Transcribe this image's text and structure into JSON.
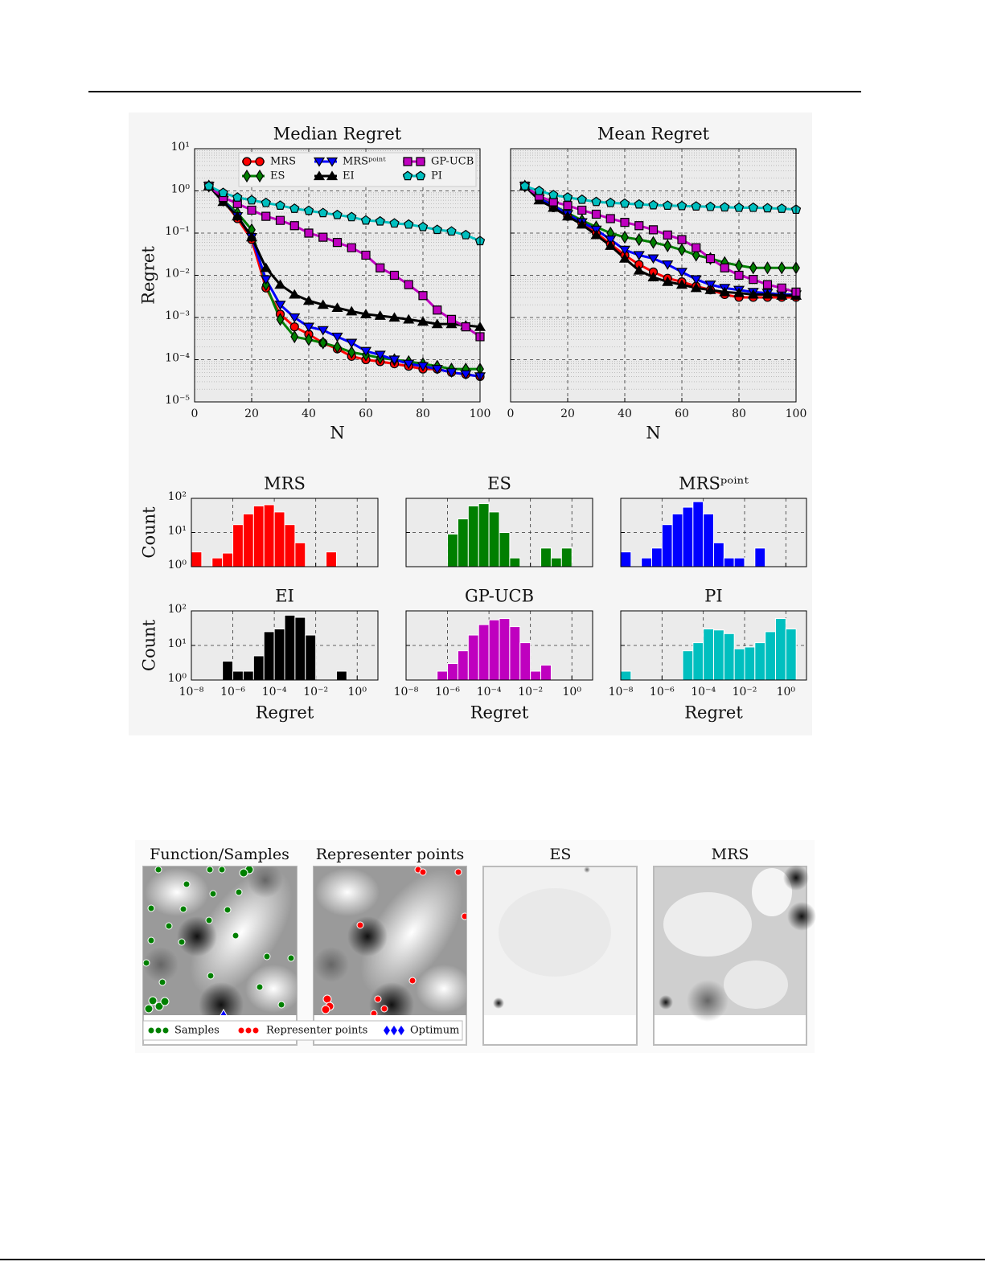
{
  "chart_data": [
    {
      "type": "line",
      "title": "Median Regret",
      "x_label": "N",
      "y_label": "Regret",
      "yscale": "log",
      "grid": true,
      "legend": "upper center",
      "x": [
        5,
        10,
        15,
        20,
        25,
        30,
        35,
        40,
        45,
        50,
        55,
        60,
        65,
        70,
        75,
        80,
        85,
        90,
        95,
        100
      ],
      "xlim": [
        0,
        100
      ],
      "xticks": [
        0,
        20,
        40,
        60,
        80,
        100
      ],
      "ylim": [
        1e-05,
        10
      ],
      "yticks": [
        {
          "value": 1e-05,
          "label": "10⁻⁵"
        },
        {
          "value": 0.0001,
          "label": "10⁻⁴"
        },
        {
          "value": 0.001,
          "label": "10⁻³"
        },
        {
          "value": 0.01,
          "label": "10⁻²"
        },
        {
          "value": 0.1,
          "label": "10⁻¹"
        },
        {
          "value": 1,
          "label": "10⁰"
        },
        {
          "value": 10,
          "label": "10¹"
        }
      ],
      "series": [
        {
          "name": "MRS",
          "color": "#ff0000",
          "marker": "circle",
          "values": [
            1.3,
            0.6,
            0.22,
            0.07,
            0.005,
            0.0012,
            0.0006,
            0.0004,
            0.00025,
            0.00018,
            0.00012,
            0.0001,
            9e-05,
            8e-05,
            7e-05,
            6e-05,
            6e-05,
            5e-05,
            4.5e-05,
            4e-05
          ]
        },
        {
          "name": "ES",
          "color": "#007f00",
          "marker": "diamond",
          "values": [
            1.3,
            0.6,
            0.3,
            0.12,
            0.006,
            0.0009,
            0.00035,
            0.0003,
            0.00025,
            0.0002,
            0.00015,
            0.00013,
            0.00011,
            0.0001,
            9e-05,
            8e-05,
            7e-05,
            6e-05,
            6e-05,
            6e-05
          ]
        },
        {
          "name": "MRSᵖᵒⁱⁿᵗ",
          "color": "#0000ff",
          "marker": "triangle-down",
          "values": [
            1.3,
            0.6,
            0.25,
            0.08,
            0.008,
            0.002,
            0.001,
            0.0006,
            0.0005,
            0.00035,
            0.00025,
            0.00016,
            0.00013,
            0.0001,
            8e-05,
            7e-05,
            6e-05,
            5e-05,
            4.5e-05,
            4e-05
          ]
        },
        {
          "name": "EI",
          "color": "#000000",
          "marker": "triangle-up",
          "values": [
            1.3,
            0.55,
            0.25,
            0.08,
            0.015,
            0.006,
            0.0035,
            0.0025,
            0.002,
            0.0017,
            0.0014,
            0.0012,
            0.0011,
            0.001,
            0.0009,
            0.0008,
            0.0007,
            0.0007,
            0.00065,
            0.0006
          ]
        },
        {
          "name": "GP-UCB",
          "color": "#bf00bf",
          "marker": "square",
          "values": [
            1.3,
            0.7,
            0.5,
            0.35,
            0.25,
            0.2,
            0.15,
            0.1,
            0.08,
            0.06,
            0.045,
            0.03,
            0.015,
            0.01,
            0.006,
            0.0033,
            0.0015,
            0.0009,
            0.0006,
            0.00035
          ]
        },
        {
          "name": "PI",
          "color": "#00bfbf",
          "marker": "pentagon",
          "values": [
            1.3,
            0.9,
            0.7,
            0.6,
            0.52,
            0.45,
            0.38,
            0.34,
            0.3,
            0.27,
            0.24,
            0.2,
            0.19,
            0.17,
            0.16,
            0.14,
            0.12,
            0.11,
            0.09,
            0.065
          ]
        }
      ]
    },
    {
      "type": "line",
      "title": "Mean Regret",
      "x_label": "N",
      "yscale": "log",
      "grid": true,
      "x": [
        5,
        10,
        15,
        20,
        25,
        30,
        35,
        40,
        45,
        50,
        55,
        60,
        65,
        70,
        75,
        80,
        85,
        90,
        95,
        100
      ],
      "xlim": [
        0,
        100
      ],
      "xticks": [
        0,
        20,
        40,
        60,
        80,
        100
      ],
      "ylim": [
        1e-05,
        10
      ],
      "yticks": [
        1e-05,
        0.0001,
        0.001,
        0.01,
        0.1,
        1,
        10
      ],
      "series": [
        {
          "color": "#ff0000",
          "marker": "circle",
          "values": [
            1.3,
            0.65,
            0.4,
            0.25,
            0.17,
            0.1,
            0.055,
            0.03,
            0.018,
            0.012,
            0.0085,
            0.007,
            0.0055,
            0.0045,
            0.0035,
            0.003,
            0.003,
            0.003,
            0.003,
            0.003
          ]
        },
        {
          "color": "#007f00",
          "marker": "diamond",
          "values": [
            1.3,
            0.7,
            0.45,
            0.3,
            0.2,
            0.14,
            0.1,
            0.08,
            0.07,
            0.06,
            0.05,
            0.04,
            0.03,
            0.025,
            0.02,
            0.017,
            0.015,
            0.015,
            0.015,
            0.015
          ]
        },
        {
          "color": "#0000ff",
          "marker": "triangle-down",
          "values": [
            1.3,
            0.65,
            0.45,
            0.28,
            0.18,
            0.12,
            0.07,
            0.04,
            0.03,
            0.025,
            0.018,
            0.012,
            0.008,
            0.006,
            0.005,
            0.0045,
            0.004,
            0.0038,
            0.0035,
            0.0035
          ]
        },
        {
          "color": "#000000",
          "marker": "triangle-up",
          "values": [
            1.3,
            0.6,
            0.4,
            0.25,
            0.16,
            0.09,
            0.05,
            0.025,
            0.013,
            0.009,
            0.007,
            0.006,
            0.005,
            0.0045,
            0.004,
            0.0038,
            0.0035,
            0.0035,
            0.0033,
            0.0033
          ]
        },
        {
          "color": "#bf00bf",
          "marker": "square",
          "values": [
            1.3,
            0.75,
            0.55,
            0.45,
            0.35,
            0.28,
            0.22,
            0.18,
            0.15,
            0.12,
            0.09,
            0.07,
            0.045,
            0.025,
            0.015,
            0.01,
            0.008,
            0.006,
            0.005,
            0.004
          ]
        },
        {
          "color": "#00bfbf",
          "marker": "pentagon",
          "values": [
            1.3,
            1.0,
            0.8,
            0.7,
            0.62,
            0.55,
            0.52,
            0.5,
            0.48,
            0.46,
            0.45,
            0.44,
            0.43,
            0.42,
            0.41,
            0.4,
            0.4,
            0.39,
            0.38,
            0.36
          ]
        }
      ]
    },
    {
      "type": "histogram",
      "title": "MRS",
      "y_label": "Count",
      "color": "#ff0000",
      "xscale": "log",
      "yscale": "log",
      "grid": true,
      "bins": [
        1e-08,
        3.16e-08,
        1e-07,
        3.16e-07,
        1e-06,
        3.16e-06,
        1e-05,
        3.16e-05,
        0.0001,
        0.000316,
        0.001,
        0.00316,
        0.01,
        0.0316,
        0.1,
        0.316,
        1,
        3.16,
        10
      ],
      "values": [
        2.7,
        0,
        1.8,
        2.5,
        17,
        35,
        60,
        65,
        40,
        17,
        5,
        0,
        0,
        2.7,
        0,
        0,
        0,
        0
      ],
      "xlim": [
        1e-08,
        10
      ],
      "xticks": [
        1e-08,
        1e-06,
        0.0001,
        0.01,
        1
      ],
      "ylim": [
        1,
        100
      ],
      "yticks": [
        {
          "value": 1,
          "label": "10⁰"
        },
        {
          "value": 10,
          "label": "10¹"
        },
        {
          "value": 100,
          "label": "10²"
        }
      ]
    },
    {
      "type": "histogram",
      "title": "ES",
      "color": "#007f00",
      "xscale": "log",
      "yscale": "log",
      "grid": true,
      "bins": [
        1e-08,
        3.16e-08,
        1e-07,
        3.16e-07,
        1e-06,
        3.16e-06,
        1e-05,
        3.16e-05,
        0.0001,
        0.000316,
        0.001,
        0.00316,
        0.01,
        0.0316,
        0.1,
        0.316,
        1,
        3.16,
        10
      ],
      "values": [
        0,
        0,
        0,
        0,
        9,
        25,
        60,
        70,
        40,
        10,
        1.8,
        0,
        0,
        3.5,
        1.8,
        3.5,
        0,
        0
      ],
      "xlim": [
        1e-08,
        10
      ],
      "xticks": [
        1e-08,
        1e-06,
        0.0001,
        0.01,
        1
      ],
      "ylim": [
        1,
        100
      ],
      "yticks": [
        1,
        10,
        100
      ]
    },
    {
      "type": "histogram",
      "title": "MRSᵖᵒⁱⁿᵗ",
      "color": "#0000ff",
      "xscale": "log",
      "yscale": "log",
      "grid": true,
      "bins": [
        1e-08,
        3.16e-08,
        1e-07,
        3.16e-07,
        1e-06,
        3.16e-06,
        1e-05,
        3.16e-05,
        0.0001,
        0.000316,
        0.001,
        0.00316,
        0.01,
        0.0316,
        0.1,
        0.316,
        1,
        3.16,
        10
      ],
      "values": [
        2.7,
        0,
        1.8,
        3.5,
        17,
        35,
        55,
        80,
        35,
        5,
        1.8,
        1.8,
        0,
        3.5,
        0,
        0,
        0,
        0
      ],
      "xlim": [
        1e-08,
        10
      ],
      "xticks": [
        1e-08,
        1e-06,
        0.0001,
        0.01,
        1
      ],
      "ylim": [
        1,
        100
      ],
      "yticks": [
        1,
        10,
        100
      ]
    },
    {
      "type": "histogram",
      "title": "EI",
      "x_label": "Regret",
      "y_label": "Count",
      "color": "#000000",
      "xscale": "log",
      "yscale": "log",
      "grid": true,
      "bins": [
        1e-08,
        3.16e-08,
        1e-07,
        3.16e-07,
        1e-06,
        3.16e-06,
        1e-05,
        3.16e-05,
        0.0001,
        0.000316,
        0.001,
        0.00316,
        0.01,
        0.0316,
        0.1,
        0.316,
        1,
        3.16,
        10
      ],
      "values": [
        0,
        0,
        0,
        3.5,
        1.8,
        1.8,
        5,
        25,
        30,
        75,
        65,
        20,
        0,
        0,
        1.8,
        0,
        0,
        0
      ],
      "xlim": [
        1e-08,
        10
      ],
      "xticks": [
        {
          "value": 1e-08,
          "label": "10⁻⁸"
        },
        {
          "value": 1e-06,
          "label": "10⁻⁶"
        },
        {
          "value": 0.0001,
          "label": "10⁻⁴"
        },
        {
          "value": 0.01,
          "label": "10⁻²"
        },
        {
          "value": 1,
          "label": "10⁰"
        }
      ],
      "ylim": [
        1,
        100
      ],
      "yticks": [
        {
          "value": 1,
          "label": "10⁰"
        },
        {
          "value": 10,
          "label": "10¹"
        },
        {
          "value": 100,
          "label": "10²"
        }
      ]
    },
    {
      "type": "histogram",
      "title": "GP-UCB",
      "x_label": "Regret",
      "color": "#bf00bf",
      "xscale": "log",
      "yscale": "log",
      "grid": true,
      "bins": [
        1e-08,
        3.16e-08,
        1e-07,
        3.16e-07,
        1e-06,
        3.16e-06,
        1e-05,
        3.16e-05,
        0.0001,
        0.000316,
        0.001,
        0.00316,
        0.01,
        0.0316,
        0.1,
        0.316,
        1,
        3.16,
        10
      ],
      "values": [
        0,
        0,
        0,
        1.8,
        3,
        7,
        20,
        40,
        55,
        60,
        35,
        12,
        1.8,
        2.7,
        0,
        0,
        0,
        0
      ],
      "xlim": [
        1e-08,
        10
      ],
      "xticks": [
        {
          "value": 1e-08,
          "label": "10⁻⁸"
        },
        {
          "value": 1e-06,
          "label": "10⁻⁶"
        },
        {
          "value": 0.0001,
          "label": "10⁻⁴"
        },
        {
          "value": 0.01,
          "label": "10⁻²"
        },
        {
          "value": 1,
          "label": "10⁰"
        }
      ],
      "ylim": [
        1,
        100
      ],
      "yticks": [
        1,
        10,
        100
      ]
    },
    {
      "type": "histogram",
      "title": "PI",
      "x_label": "Regret",
      "color": "#00bfbf",
      "xscale": "log",
      "yscale": "log",
      "grid": true,
      "bins": [
        1e-08,
        3.16e-08,
        1e-07,
        3.16e-07,
        1e-06,
        3.16e-06,
        1e-05,
        3.16e-05,
        0.0001,
        0.000316,
        0.001,
        0.00316,
        0.01,
        0.0316,
        0.1,
        0.316,
        1,
        3.16,
        10
      ],
      "values": [
        1.8,
        0,
        0,
        0,
        0,
        0,
        7,
        12,
        30,
        28,
        22,
        8,
        9,
        12,
        25,
        60,
        30,
        0
      ],
      "xlim": [
        1e-08,
        10
      ],
      "xticks": [
        {
          "value": 1e-08,
          "label": "10⁻⁸"
        },
        {
          "value": 1e-06,
          "label": "10⁻⁶"
        },
        {
          "value": 0.0001,
          "label": "10⁻⁴"
        },
        {
          "value": 0.01,
          "label": "10⁻²"
        },
        {
          "value": 1,
          "label": "10⁰"
        }
      ],
      "ylim": [
        1,
        100
      ],
      "yticks": [
        1,
        10,
        100
      ]
    }
  ],
  "image_panels": {
    "titles": [
      "Function/Samples",
      "Representer points",
      "ES",
      "MRS"
    ],
    "legend": [
      "Samples",
      "Representer points",
      "Optimum"
    ]
  }
}
